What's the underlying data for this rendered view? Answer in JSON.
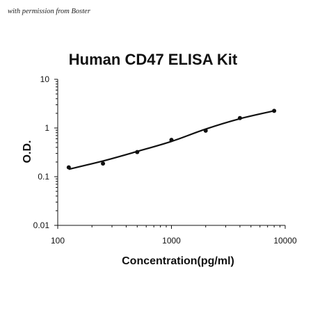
{
  "watermark": "with permission from Boster",
  "chart_data": {
    "type": "scatter",
    "title": "Human CD47 ELISA Kit",
    "xlabel": "Concentration(pg/ml)",
    "ylabel": "O.D.",
    "x_scale": "log",
    "y_scale": "log",
    "xlim": [
      100,
      10000
    ],
    "ylim": [
      0.01,
      10
    ],
    "x_ticks": [
      "100",
      "1000",
      "10000"
    ],
    "y_ticks": [
      "10",
      "1",
      "0.1",
      "0.01"
    ],
    "grid": false,
    "legend": "none",
    "series": [
      {
        "x": [
          125,
          250,
          500,
          1000,
          2000,
          4000,
          8000
        ],
        "y": [
          0.155,
          0.186,
          0.32,
          0.57,
          0.88,
          1.6,
          2.25
        ]
      }
    ],
    "fit_curve": {
      "x": [
        125,
        250,
        500,
        1000,
        2000,
        4000,
        8000
      ],
      "y": [
        0.142,
        0.21,
        0.33,
        0.53,
        0.95,
        1.55,
        2.25
      ]
    },
    "colors": {
      "points": "#111111",
      "curve": "#111111",
      "axes": "#111111"
    }
  }
}
